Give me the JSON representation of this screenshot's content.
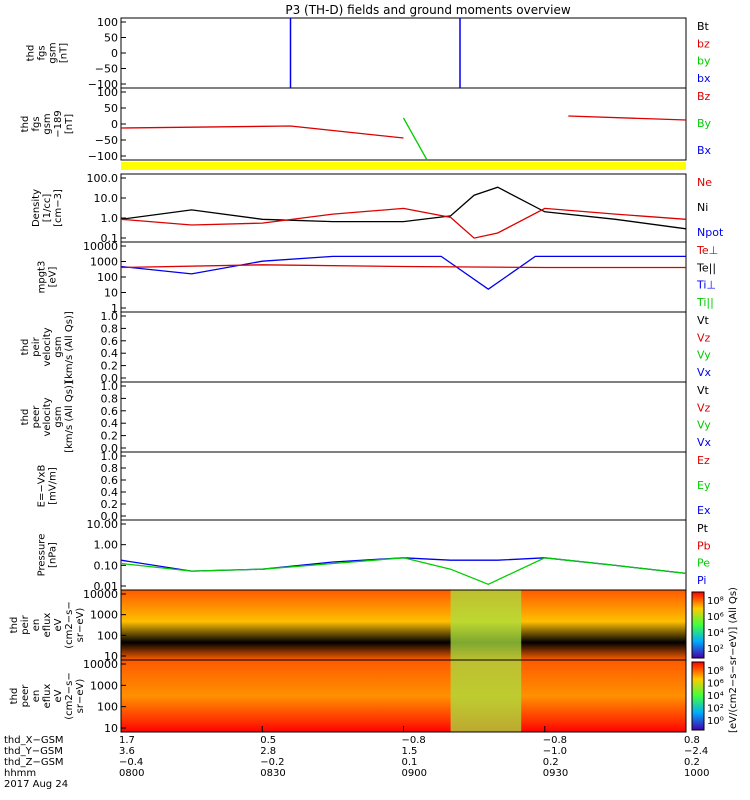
{
  "title": "P3 (TH-D) fields and ground moments overview",
  "colors": {
    "black": "#000000",
    "red": "#dd0000",
    "green": "#00cc00",
    "blue": "#0000ee",
    "yellow": "#ffff00",
    "bg": "#ffffff"
  },
  "panels": [
    {
      "id": "fgs",
      "ylabel": [
        "thd",
        "fgs",
        "gsm",
        "[nT]"
      ],
      "ticks": [
        "100",
        "50",
        "0",
        "−50",
        "−100"
      ],
      "legend": [
        {
          "text": "Bt",
          "color": "black"
        },
        {
          "text": "bz",
          "color": "red"
        },
        {
          "text": "by",
          "color": "green"
        },
        {
          "text": "bx",
          "color": "blue"
        }
      ]
    },
    {
      "id": "fgs_dsl",
      "ylabel": [
        "thd",
        "fgs",
        "gsm",
        "−189",
        "[nT]"
      ],
      "ticks": [
        "100",
        "50",
        "0",
        "−50",
        "−100"
      ],
      "legend": [
        {
          "text": "Bz",
          "color": "red"
        },
        {
          "text": "By",
          "color": "green"
        },
        {
          "text": "Bx",
          "color": "blue"
        }
      ]
    },
    {
      "id": "density",
      "ylabel": [
        "Density",
        "[1/cc]",
        "[cm−3]"
      ],
      "ticks": [
        "100.0",
        "10.0",
        "1.0",
        "0.1"
      ],
      "legend": [
        {
          "text": "Ne",
          "color": "red"
        },
        {
          "text": "Ni",
          "color": "black"
        },
        {
          "text": "Npot",
          "color": "blue"
        }
      ]
    },
    {
      "id": "temp",
      "ylabel": [
        "mpgt3",
        "[eV]"
      ],
      "ticks": [
        "10000",
        "1000",
        "100",
        "10",
        "1"
      ],
      "legend": [
        {
          "text": "Te⊥",
          "color": "red"
        },
        {
          "text": "Te||",
          "color": "black"
        },
        {
          "text": "Ti⊥",
          "color": "blue"
        },
        {
          "text": "Ti||",
          "color": "green"
        }
      ]
    },
    {
      "id": "vi",
      "ylabel": [
        "thd",
        "peir",
        "velocity",
        "gsm",
        "[km/s (All Qs)]"
      ],
      "ticks": [
        "1.0",
        "0.8",
        "0.6",
        "0.4",
        "0.2",
        "0.0"
      ],
      "legend": [
        {
          "text": "Vt",
          "color": "black"
        },
        {
          "text": "Vz",
          "color": "red"
        },
        {
          "text": "Vy",
          "color": "green"
        },
        {
          "text": "Vx",
          "color": "blue"
        }
      ]
    },
    {
      "id": "ve",
      "ylabel": [
        "thd",
        "peer",
        "velocity",
        "gsm",
        "[km/s (All Qs)]"
      ],
      "ticks": [
        "1.0",
        "0.8",
        "0.6",
        "0.4",
        "0.2",
        "0.0"
      ],
      "legend": [
        {
          "text": "Vt",
          "color": "black"
        },
        {
          "text": "Vz",
          "color": "red"
        },
        {
          "text": "Vy",
          "color": "green"
        },
        {
          "text": "Vx",
          "color": "blue"
        }
      ]
    },
    {
      "id": "efield",
      "ylabel": [
        "E=−VxB",
        "[mV/m]"
      ],
      "ticks": [
        "1.0",
        "0.8",
        "0.6",
        "0.4",
        "0.2",
        "0.0"
      ],
      "legend": [
        {
          "text": "Ez",
          "color": "red"
        },
        {
          "text": "Ey",
          "color": "green"
        },
        {
          "text": "Ex",
          "color": "blue"
        }
      ]
    },
    {
      "id": "pressure",
      "ylabel": [
        "Pressure",
        "[nPa]"
      ],
      "ticks": [
        "10.00",
        "1.00",
        "0.10",
        "0.01"
      ],
      "legend": [
        {
          "text": "Pt",
          "color": "black"
        },
        {
          "text": "Pb",
          "color": "red"
        },
        {
          "text": "Pe",
          "color": "green"
        },
        {
          "text": "Pi",
          "color": "blue"
        }
      ]
    },
    {
      "id": "ion_spec",
      "ylabel": [
        "thd",
        "peir",
        "en",
        "eflux",
        "eV",
        "(cm2−s−",
        "sr−eV)"
      ],
      "ticks": [
        "10000",
        "1000",
        "100",
        "10"
      ],
      "colorbar_ticks": [
        "10⁸",
        "10⁶",
        "10⁴",
        "10²"
      ]
    },
    {
      "id": "ele_spec",
      "ylabel": [
        "thd",
        "peer",
        "en",
        "eflux",
        "eV",
        "(cm2−s−",
        "sr−eV)"
      ],
      "ticks": [
        "10000",
        "1000",
        "100",
        "10"
      ],
      "colorbar_ticks": [
        "10⁸",
        "10⁶",
        "10⁴",
        "10²",
        "10⁰"
      ]
    }
  ],
  "colorbar_label": "[eV/(cm2−s−sr−eV)] (All Qs)",
  "xaxis": {
    "row_labels": [
      "thd_X−GSM",
      "thd_Y−GSM",
      "thd_Z−GSM",
      "hhmm",
      "2017 Aug 24"
    ],
    "columns": [
      {
        "x_gsm": "1.7",
        "y_gsm": "3.6",
        "z_gsm": "−0.4",
        "hhmm": "0800"
      },
      {
        "x_gsm": "0.5",
        "y_gsm": "2.8",
        "z_gsm": "−0.2",
        "hhmm": "0830"
      },
      {
        "x_gsm": "−0.8",
        "y_gsm": "1.5",
        "z_gsm": "0.1",
        "hhmm": "0900"
      },
      {
        "x_gsm": "−0.8",
        "y_gsm": "−1.0",
        "z_gsm": "0.2",
        "hhmm": "0930"
      },
      {
        "x_gsm": "0.8",
        "y_gsm": "−2.4",
        "z_gsm": "0.2",
        "hhmm": "1000"
      }
    ]
  },
  "chart_data": {
    "type": "line",
    "title": "P3 (TH-D) fields and ground moments overview",
    "x_range_hhmm": [
      "0800",
      "1000"
    ],
    "time_ticks": [
      "0800",
      "0830",
      "0900",
      "0930",
      "1000"
    ],
    "density": {
      "yscale": "log",
      "ylim": [
        0.05,
        200
      ],
      "Ni": {
        "t": [
          "0800",
          "0815",
          "0830",
          "0845",
          "0900",
          "0910",
          "0915",
          "0920",
          "0930",
          "0945",
          "1000"
        ],
        "v": [
          0.8,
          2.5,
          0.8,
          0.6,
          0.6,
          1.2,
          15,
          40,
          2,
          0.8,
          0.25
        ]
      },
      "Ne": {
        "t": [
          "0800",
          "0815",
          "0830",
          "0845",
          "0900",
          "0910",
          "0915",
          "0920",
          "0930",
          "0945",
          "1000"
        ],
        "v": [
          0.8,
          0.4,
          0.5,
          1.5,
          3,
          1.0,
          0.08,
          0.15,
          3,
          1.5,
          0.8
        ]
      }
    },
    "temperature": {
      "yscale": "log",
      "ylim": [
        1,
        10000
      ],
      "Ti": {
        "t": [
          "0800",
          "0815",
          "0830",
          "0845",
          "0900",
          "0908",
          "0918",
          "0928",
          "0935",
          "0945",
          "1000"
        ],
        "v": [
          400,
          150,
          800,
          1500,
          1500,
          1500,
          20,
          1500,
          1500,
          1500,
          1500
        ]
      },
      "Te": {
        "t": [
          "0800",
          "0830",
          "0900",
          "0930",
          "1000"
        ],
        "v": [
          350,
          500,
          400,
          350,
          350
        ]
      }
    },
    "pressure": {
      "yscale": "log",
      "ylim": [
        0.004,
        20
      ],
      "Pi": {
        "t": [
          "0800",
          "0815",
          "0830",
          "0845",
          "0900",
          "0910",
          "0920",
          "0930",
          "0945",
          "1000"
        ],
        "v": [
          0.15,
          0.04,
          0.05,
          0.12,
          0.2,
          0.15,
          0.15,
          0.2,
          0.08,
          0.03
        ]
      },
      "Pb": {
        "t": [
          "0800",
          "0815",
          "0830",
          "0845",
          "0900",
          "0910",
          "0918",
          "0930",
          "0945",
          "1000"
        ],
        "v": [
          0.1,
          0.04,
          0.05,
          0.1,
          0.2,
          0.05,
          0.008,
          0.2,
          0.08,
          0.03
        ]
      }
    }
  }
}
